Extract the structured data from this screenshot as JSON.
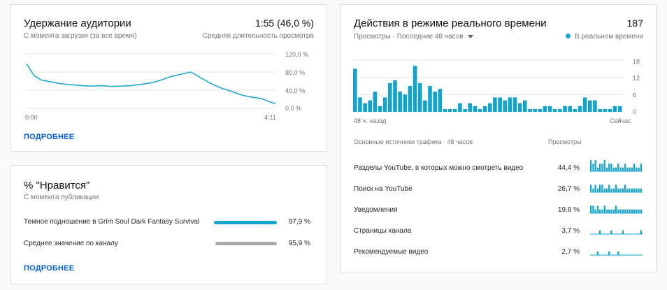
{
  "retention": {
    "title": "Удержание аудитории",
    "subtitle": "С момента загрузки (за все время)",
    "value": "1:55 (46,0 %)",
    "value_label": "Средняя длительность просмотра",
    "more": "ПОДРОБНЕЕ",
    "y_ticks": [
      "120,0 %",
      "80,0 %",
      "40,0 %",
      "0,0 %"
    ],
    "x_ticks": [
      "0:00",
      "4:11"
    ]
  },
  "likes": {
    "title": "% \"Нравится\"",
    "subtitle": "С момента публикации",
    "more": "ПОДРОБНЕЕ",
    "rows": [
      {
        "label": "Темное подношение в Grim Soul Dark Fantasy Survival",
        "value": "97,9 %",
        "fraction": 0.979,
        "color": "#12a4cc"
      },
      {
        "label": "Среднее значение по каналу",
        "value": "95,9 %",
        "fraction": 0.959,
        "color": "#aaaaaa"
      }
    ]
  },
  "realtime": {
    "title": "Действия в режиме реального времени",
    "value": "187",
    "subtitle": "Просмотры · Последние 48 часов",
    "legend": "В реальном времени",
    "y_ticks": [
      "18",
      "12",
      "6",
      "0"
    ],
    "x_start": "48 ч. назад",
    "x_end": "Сейчас",
    "sources_header": "Основные источники трафика · 48 часов",
    "views_header": "Просмотры",
    "sources": [
      {
        "label": "Разделы YouTube, в которых можно смотреть видео",
        "value": "44,4 %"
      },
      {
        "label": "Поиск на YouTube",
        "value": "26,7 %"
      },
      {
        "label": "Уведомления",
        "value": "19,8 %"
      },
      {
        "label": "Страницы канала",
        "value": "3,7 %"
      },
      {
        "label": "Рекомендуемые видео",
        "value": "2,7 %"
      }
    ]
  },
  "chart_data": [
    {
      "type": "line",
      "x": [
        0,
        3,
        6,
        10,
        14,
        18,
        22,
        26,
        30,
        34,
        38,
        42,
        46,
        50,
        54,
        58,
        62,
        66,
        70,
        74,
        78,
        82,
        86,
        90,
        94,
        98,
        100
      ],
      "y": [
        98,
        72,
        62,
        58,
        54,
        52,
        50,
        49,
        50,
        48,
        49,
        50,
        53,
        56,
        62,
        70,
        75,
        80,
        67,
        55,
        45,
        38,
        30,
        25,
        22,
        14,
        10
      ],
      "ylim": [
        0,
        120
      ]
    },
    {
      "type": "bar",
      "values": [
        15,
        5,
        3,
        4,
        7,
        2,
        5,
        10,
        11,
        7,
        6,
        9,
        16,
        10,
        4,
        9,
        7,
        8,
        1,
        1,
        1,
        3,
        1,
        3,
        2,
        1,
        2,
        3,
        5,
        5,
        4,
        5,
        5,
        3,
        4,
        1,
        1,
        1,
        2,
        2,
        1,
        1,
        2,
        2,
        1,
        2,
        5,
        4,
        4,
        1,
        1,
        1,
        2,
        2
      ],
      "ylim": [
        0,
        18
      ]
    }
  ],
  "sparklines": [
    [
      3,
      2,
      3,
      1,
      2,
      2,
      3,
      1,
      2,
      2,
      1,
      1,
      2,
      1,
      1,
      2,
      1,
      1,
      1,
      2,
      1,
      1,
      2
    ],
    [
      2,
      1,
      2,
      1,
      2,
      2,
      1,
      1,
      2,
      1,
      1,
      2,
      1,
      1,
      1,
      2,
      1,
      1,
      1,
      1,
      1,
      1,
      1
    ],
    [
      2,
      2,
      1,
      2,
      1,
      1,
      2,
      1,
      1,
      1,
      1,
      2,
      1,
      1,
      1,
      1,
      1,
      1,
      1,
      1,
      1,
      1,
      1
    ],
    [
      0,
      0,
      0,
      0,
      1,
      0,
      0,
      0,
      0,
      1,
      0,
      0,
      0,
      0,
      1,
      0,
      0,
      0,
      0,
      0,
      0,
      0,
      1
    ],
    [
      0,
      0,
      0,
      1,
      0,
      0,
      0,
      0,
      1,
      0,
      0,
      0,
      1,
      0,
      0,
      0,
      0,
      0,
      0,
      0,
      0,
      0,
      0
    ]
  ],
  "colors": {
    "accent": "#12a4cc",
    "link": "#065fd4",
    "grid": "#e5e5e5"
  }
}
